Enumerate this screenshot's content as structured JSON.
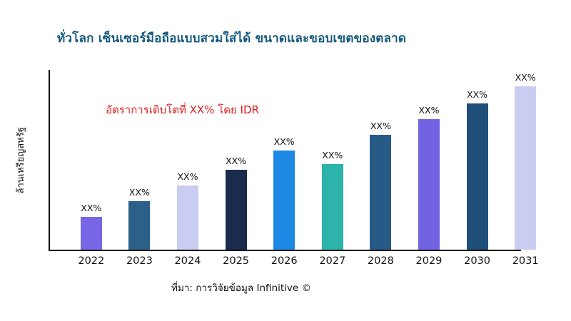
{
  "title": "ทั่วโลก เซ็นเซอร์มือถือแบบสวมใส่ได้ ขนาดและขอบเขตของตลาด",
  "y_axis_label": "ล้านเหรียญสหรัฐ",
  "annotation": "อัตราการเติบโตที่ XX% โดย IDR",
  "source": "ที่มา: การวิจัยข้อมูล Infinitive ©",
  "colors": {
    "title_text": "#155a7e",
    "annotation_text": "#e01b1b",
    "axis": "#111111"
  },
  "chart_data": {
    "type": "bar",
    "title": "ทั่วโลก เซ็นเซอร์มือถือแบบสวมใส่ได้ ขนาดและขอบเขตของตลาด",
    "xlabel": "",
    "ylabel": "ล้านเหรียญสหรัฐ",
    "categories": [
      "2022",
      "2023",
      "2024",
      "2025",
      "2026",
      "2027",
      "2028",
      "2029",
      "2030",
      "2031"
    ],
    "values": [
      19,
      28,
      37,
      46,
      57,
      49,
      66,
      75,
      84,
      94
    ],
    "bar_labels": [
      "XX%",
      "XX%",
      "XX%",
      "XX%",
      "XX%",
      "XX%",
      "XX%",
      "XX%",
      "XX%",
      "XX%"
    ],
    "bar_colors": [
      "#7766e6",
      "#2c5f8a",
      "#c9cdf2",
      "#1b2b4d",
      "#1e88e5",
      "#2cb3ac",
      "#265a87",
      "#7263e3",
      "#1f4e79",
      "#c9cdf2"
    ],
    "ylim": [
      0,
      100
    ],
    "grid": false,
    "legend": false,
    "annotation": "อัตราการเติบโตที่ XX% โดย IDR"
  }
}
